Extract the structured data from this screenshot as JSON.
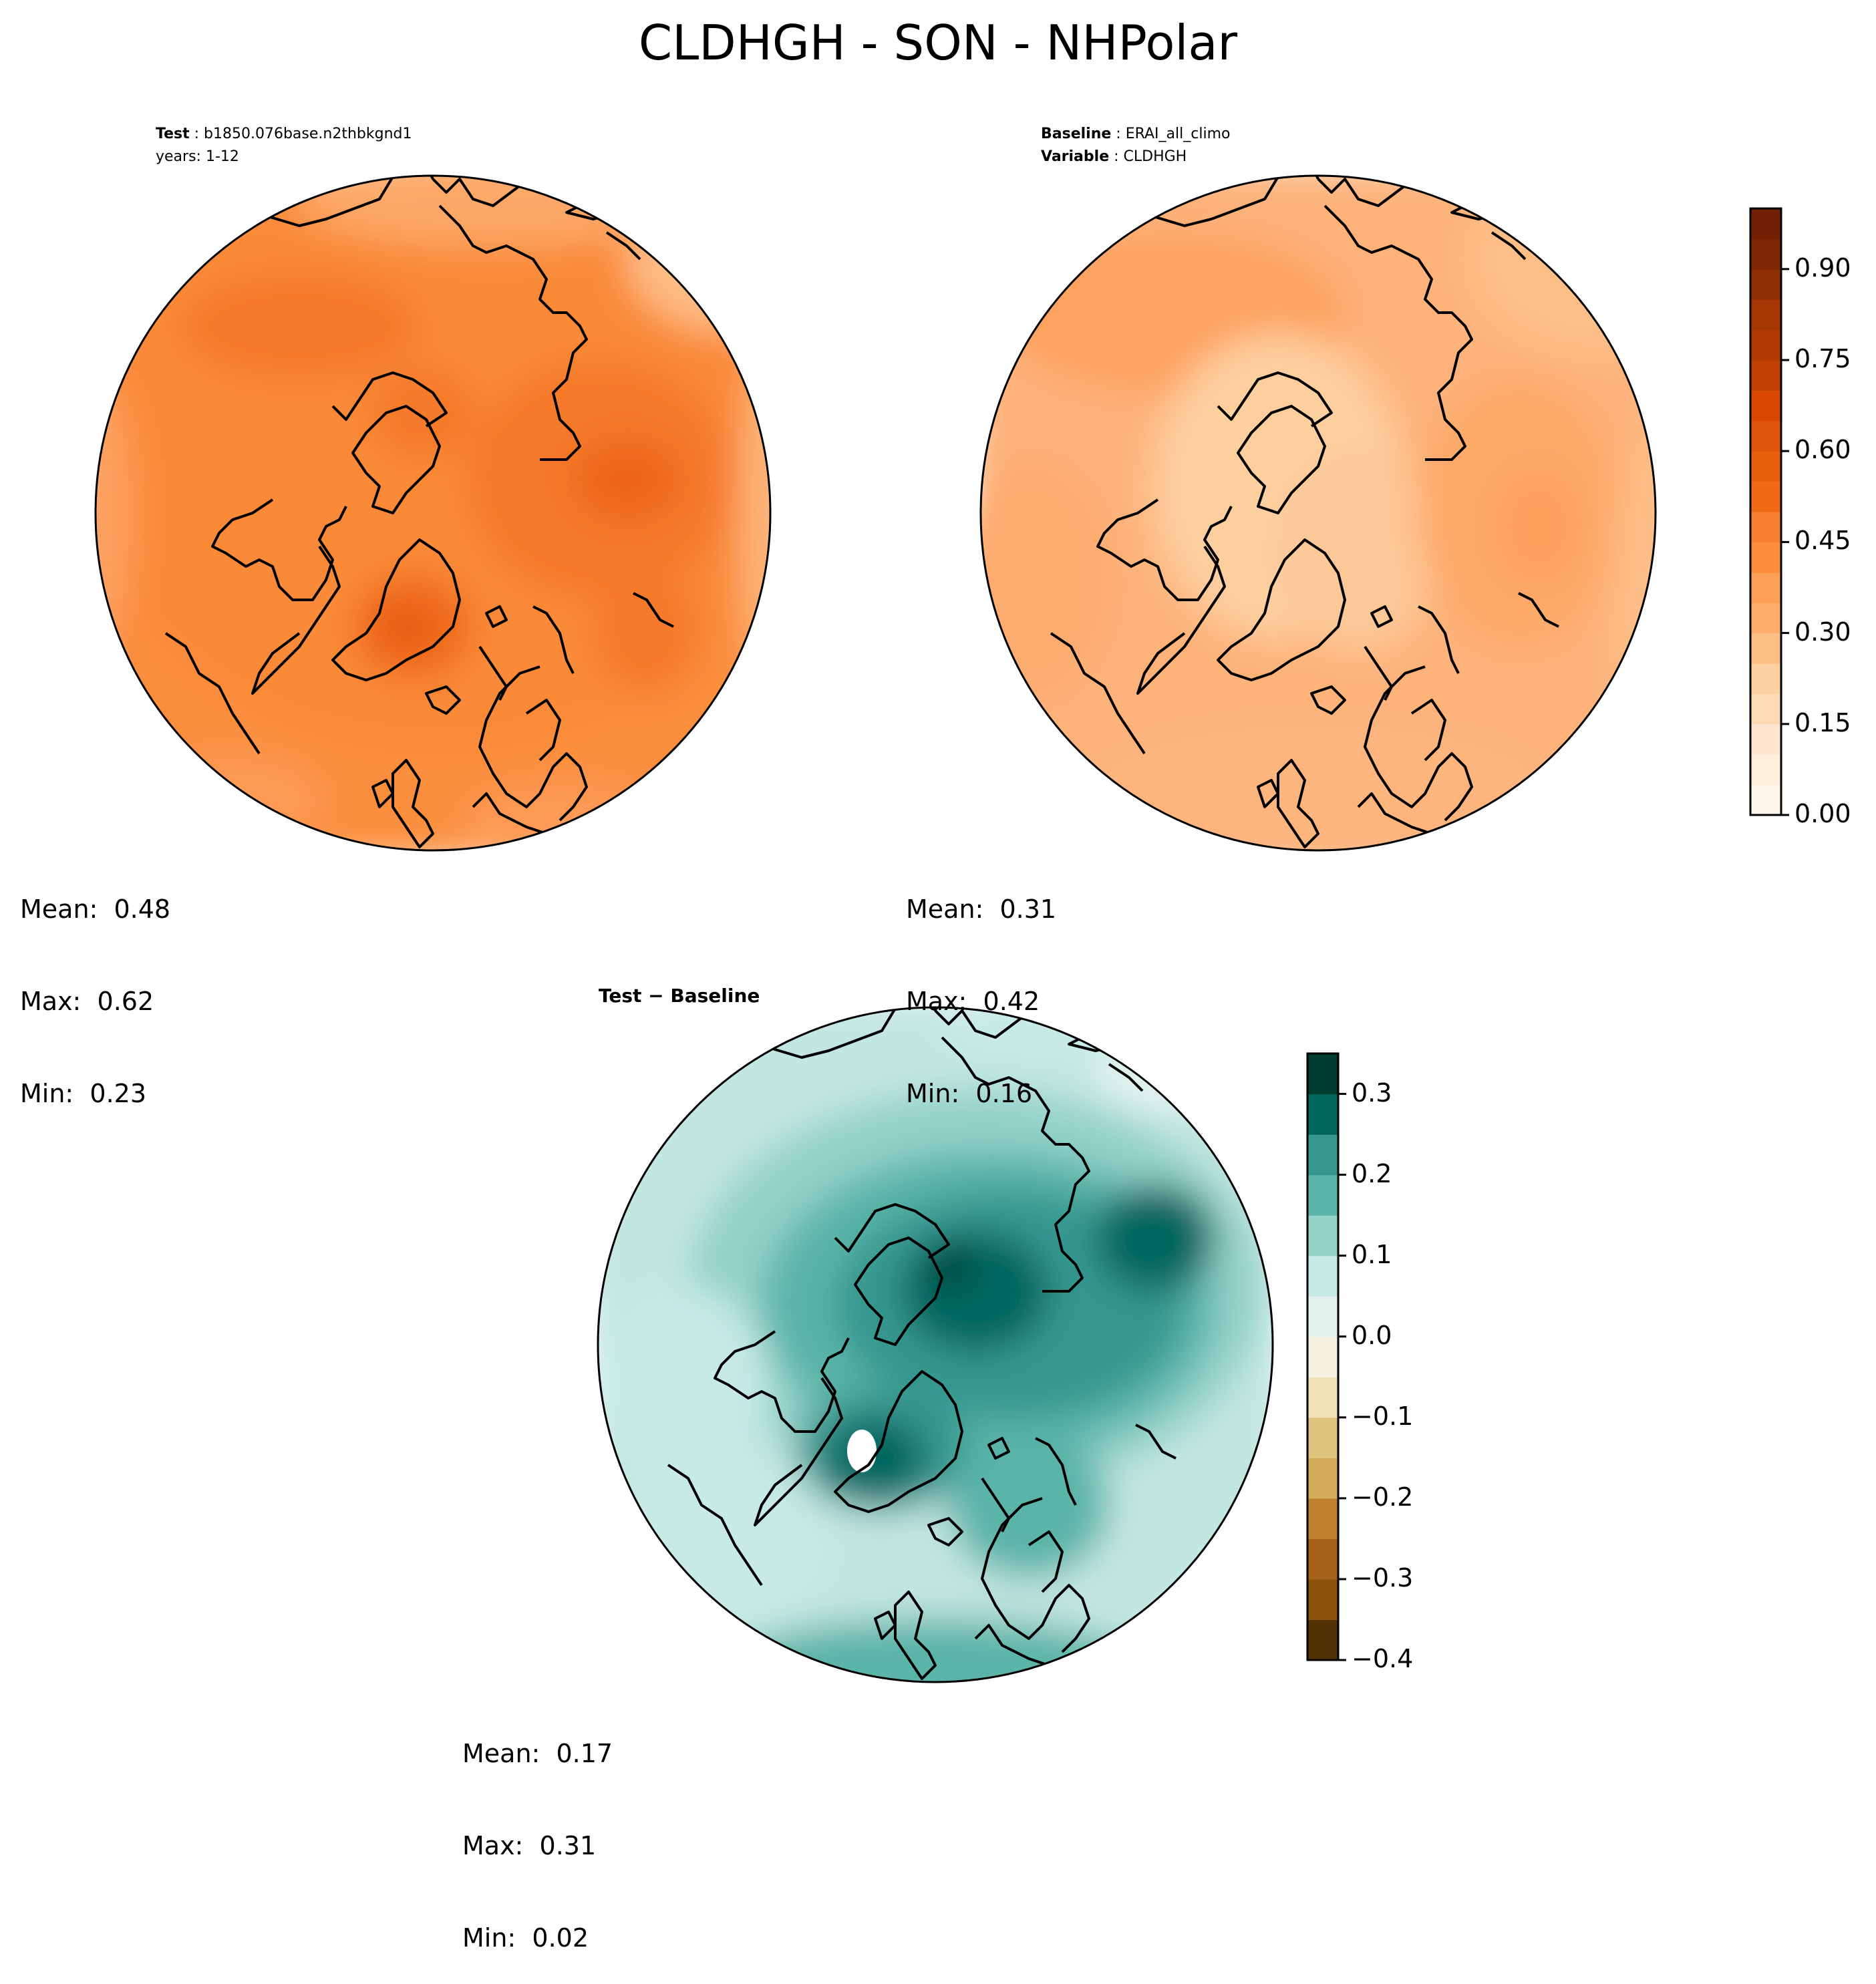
{
  "chart_data": {
    "title": "CLDHGH - SON - NHPolar",
    "panels": [
      {
        "type": "heatmap",
        "projection": "north-polar-stereographic",
        "header": {
          "label": "Test",
          "value": "b1850.076base.n2thbkgnd1",
          "line2": "years: 1-12"
        },
        "colormap": "Oranges",
        "stats": {
          "mean": "Mean:  0.48",
          "max": "Max:  0.62",
          "min": "Min:  0.23"
        },
        "field_summary": {
          "mean": 0.48,
          "max": 0.62,
          "min": 0.23
        }
      },
      {
        "type": "heatmap",
        "projection": "north-polar-stereographic",
        "header": {
          "label": "Baseline",
          "value": "ERAI_all_climo",
          "label2": "Variable",
          "value2": "CLDHGH"
        },
        "colormap": "Oranges",
        "stats": {
          "mean": "Mean:  0.31",
          "max": "Max:  0.42",
          "min": "Min:  0.16"
        },
        "field_summary": {
          "mean": 0.31,
          "max": 0.42,
          "min": 0.16
        }
      },
      {
        "type": "heatmap",
        "projection": "north-polar-stereographic",
        "header": {
          "label": "Test − Baseline"
        },
        "colormap": "BrBG",
        "stats": {
          "mean": "Mean:  0.17",
          "max": "Max:  0.31",
          "min": "Min:  0.02"
        },
        "field_summary": {
          "mean": 0.17,
          "max": 0.31,
          "min": 0.02
        }
      }
    ],
    "colorbars": [
      {
        "range": [
          0.0,
          1.0
        ],
        "ticks": [
          0.0,
          0.15,
          0.3,
          0.45,
          0.6,
          0.75,
          0.9
        ],
        "tick_labels": [
          "0.00",
          "0.15",
          "0.30",
          "0.45",
          "0.60",
          "0.75",
          "0.90"
        ],
        "levels": 20,
        "colors": [
          "#fff5eb",
          "#feeedb",
          "#fee6ce",
          "#fdd9b4",
          "#fdd0a2",
          "#fdbe85",
          "#fdae6b",
          "#fd9f55",
          "#fd8d3c",
          "#f98033",
          "#f16913",
          "#e95e0d",
          "#e0550a",
          "#d94801",
          "#c24002",
          "#b33b03",
          "#a63603",
          "#8f3004",
          "#7f2704",
          "#722003"
        ]
      },
      {
        "range": [
          -0.4,
          0.35
        ],
        "ticks": [
          -0.4,
          -0.3,
          -0.2,
          -0.1,
          0.0,
          0.1,
          0.2,
          0.3
        ],
        "tick_labels": [
          "−0.4",
          "−0.3",
          "−0.2",
          "−0.1",
          "0.0",
          "0.1",
          "0.2",
          "0.3"
        ],
        "levels": 15,
        "colors": [
          "#543005",
          "#8c510a",
          "#a6611a",
          "#bf812d",
          "#d3a95a",
          "#dfc27d",
          "#f0e2b6",
          "#f5f0e0",
          "#e4f2ef",
          "#c7eae5",
          "#92d2c8",
          "#5ab4a8",
          "#35978f",
          "#01665e",
          "#003c30"
        ]
      }
    ]
  }
}
